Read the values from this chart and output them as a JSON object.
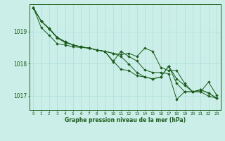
{
  "title": "Graphe pression niveau de la mer (hPa)",
  "background_color": "#cceee8",
  "grid_color": "#aadddd",
  "line_color": "#1a5c1a",
  "marker_color": "#1a5c1a",
  "xlim": [
    -0.5,
    23.5
  ],
  "ylim": [
    1016.55,
    1019.85
  ],
  "yticks": [
    1017,
    1018,
    1019
  ],
  "xticks": [
    0,
    1,
    2,
    3,
    4,
    5,
    6,
    7,
    8,
    9,
    10,
    11,
    12,
    13,
    14,
    15,
    16,
    17,
    18,
    19,
    20,
    21,
    22,
    23
  ],
  "series": [
    [
      1019.75,
      1019.32,
      1019.1,
      1018.82,
      1018.68,
      1018.58,
      1018.52,
      1018.48,
      1018.42,
      1018.38,
      1018.05,
      1018.38,
      1018.22,
      1018.08,
      1017.8,
      1017.72,
      1017.72,
      1017.68,
      1016.88,
      1017.12,
      1017.12,
      1017.12,
      1016.98,
      1016.92
    ],
    [
      1019.75,
      1019.32,
      1019.08,
      1018.82,
      1018.68,
      1018.58,
      1018.52,
      1018.48,
      1018.42,
      1018.38,
      1018.32,
      1018.22,
      1017.98,
      1017.72,
      1017.58,
      1017.52,
      1017.58,
      1017.92,
      1017.52,
      1017.32,
      1017.12,
      1017.18,
      1017.08,
      1016.92
    ],
    [
      1019.75,
      1019.32,
      1019.08,
      1018.8,
      1018.65,
      1018.58,
      1018.52,
      1018.48,
      1018.42,
      1018.38,
      1018.32,
      1018.28,
      1018.32,
      1018.22,
      1018.48,
      1018.38,
      1017.88,
      1017.78,
      1017.78,
      1017.38,
      1017.12,
      1017.12,
      1017.42,
      1017.02
    ],
    [
      1019.75,
      1019.12,
      1018.88,
      1018.62,
      1018.58,
      1018.52,
      1018.5,
      1018.48,
      1018.42,
      1018.38,
      1018.08,
      1017.82,
      1017.78,
      1017.62,
      1017.58,
      1017.52,
      1017.58,
      1017.92,
      1017.38,
      1017.12,
      1017.12,
      1017.18,
      1017.08,
      1016.92
    ]
  ]
}
